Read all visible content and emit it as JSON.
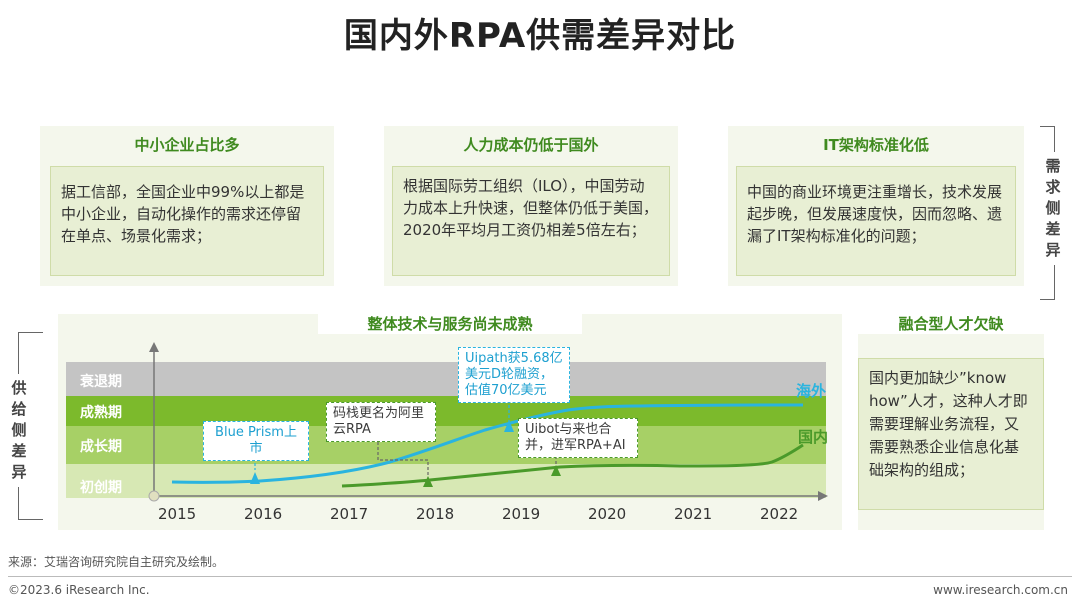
{
  "title": "国内外RPA供需差异对比",
  "demand_label": "需求侧差异",
  "supply_label": "供给侧差异",
  "cards": [
    {
      "title": "中小企业占比多",
      "body": "据工信部，全国企业中99%以上都是中小企业，自动化操作的需求还停留在单点、场景化需求；"
    },
    {
      "title": "人力成本仍低于国外",
      "body": "根据国际劳工组织（ILO），中国劳动力成本上升快速，但整体仍低于美国，2020年平均月工资仍相差5倍左右；"
    },
    {
      "title": "IT架构标准化低",
      "body": "中国的商业环境更注重增长，技术发展起步晚，但发展速度快，因而忽略、遗漏了IT架构标准化的问题；"
    }
  ],
  "chart_panel_title": "整体技术与服务尚未成熟",
  "talent_card": {
    "title": "融合型人才欠缺",
    "body": "国内更加缺少”know how”人才，这种人才即需要理解业务流程，又需要熟悉企业信息化基础架构的组成；"
  },
  "chart_data": {
    "type": "line",
    "stages": [
      "衰退期",
      "成熟期",
      "成长期",
      "初创期"
    ],
    "x": [
      "2015",
      "2016",
      "2017",
      "2018",
      "2019",
      "2020",
      "2021",
      "2022"
    ],
    "series": [
      {
        "name": "海外",
        "color": "#2ab4df"
      },
      {
        "name": "国内",
        "color": "#4a9a2a"
      }
    ],
    "annotations": [
      {
        "text": "Blue Prism上市",
        "series": "海外",
        "year": "2016"
      },
      {
        "text": "码栈更名为阿里云RPA",
        "series": "国内",
        "year": "2018"
      },
      {
        "text": "Uipath获5.68亿美元D轮融资，估值70亿美元",
        "series": "海外",
        "year": "2019"
      },
      {
        "text": "Uibot与来也合并，进军RPA+AI",
        "series": "国内",
        "year": "2019"
      }
    ]
  },
  "footer": {
    "source": "来源：艾瑞咨询研究院自主研究及绘制。",
    "copyright": "©2023.6 iResearch Inc.",
    "website": "www.iresearch.com.cn"
  }
}
